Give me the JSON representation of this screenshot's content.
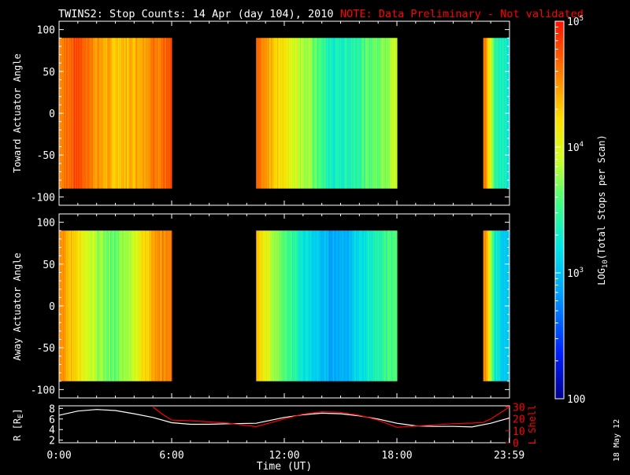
{
  "header": {
    "title": "TWINS2: Stop Counts: 14 Apr (day 104), 2010",
    "note": "NOTE: Data Preliminary - Not validated",
    "stamp": "18 May 12"
  },
  "colors": {
    "background": "#000000",
    "axes": "#ffffff",
    "note": "#ff0000",
    "r_line": "#ffffff",
    "lshell_line": "#ff0000"
  },
  "chart_data": [
    {
      "type": "heatmap",
      "name": "toward",
      "ylabel": "Toward Actuator Angle",
      "xlim": [
        0,
        24
      ],
      "ylim": [
        -110,
        110
      ],
      "yticks": [
        "100",
        "50",
        "0",
        "-50",
        "-100"
      ],
      "data_y_range": [
        -90,
        90
      ],
      "data_segments_hours": [
        [
          0,
          6
        ],
        [
          10.5,
          18
        ],
        [
          22.6,
          24
        ]
      ],
      "description_levels": [
        {
          "t": 0.2,
          "log": 4.6
        },
        {
          "t": 1.0,
          "log": 4.8
        },
        {
          "t": 2.0,
          "log": 4.5
        },
        {
          "t": 3.0,
          "log": 4.3
        },
        {
          "t": 4.0,
          "log": 4.4
        },
        {
          "t": 5.0,
          "log": 4.6
        },
        {
          "t": 5.9,
          "log": 4.7
        },
        {
          "t": 10.6,
          "log": 4.6
        },
        {
          "t": 11.5,
          "log": 4.3
        },
        {
          "t": 12.5,
          "log": 4.0
        },
        {
          "t": 13.5,
          "log": 3.7
        },
        {
          "t": 14.5,
          "log": 3.3
        },
        {
          "t": 15.5,
          "log": 3.4
        },
        {
          "t": 16.5,
          "log": 3.6
        },
        {
          "t": 17.9,
          "log": 3.9
        },
        {
          "t": 22.7,
          "log": 4.6
        },
        {
          "t": 23.2,
          "log": 3.5
        },
        {
          "t": 23.95,
          "log": 3.2
        }
      ]
    },
    {
      "type": "heatmap",
      "name": "away",
      "ylabel": "Away Actuator Angle",
      "xlim": [
        0,
        24
      ],
      "ylim": [
        -110,
        110
      ],
      "yticks": [
        "100",
        "50",
        "0",
        "-50",
        "-100"
      ],
      "data_y_range": [
        -90,
        90
      ],
      "data_segments_hours": [
        [
          0,
          6
        ],
        [
          10.5,
          18
        ],
        [
          22.6,
          24
        ]
      ],
      "description_levels": [
        {
          "t": 0.2,
          "log": 4.5
        },
        {
          "t": 1.0,
          "log": 4.2
        },
        {
          "t": 2.0,
          "log": 3.8
        },
        {
          "t": 3.0,
          "log": 3.6
        },
        {
          "t": 4.0,
          "log": 4.0
        },
        {
          "t": 5.0,
          "log": 4.4
        },
        {
          "t": 5.9,
          "log": 4.6
        },
        {
          "t": 10.6,
          "log": 4.3
        },
        {
          "t": 11.5,
          "log": 3.8
        },
        {
          "t": 12.5,
          "log": 3.4
        },
        {
          "t": 13.5,
          "log": 3.1
        },
        {
          "t": 14.5,
          "log": 2.9
        },
        {
          "t": 15.5,
          "log": 3.0
        },
        {
          "t": 16.5,
          "log": 3.3
        },
        {
          "t": 17.9,
          "log": 3.6
        },
        {
          "t": 22.7,
          "log": 4.5
        },
        {
          "t": 23.2,
          "log": 3.3
        },
        {
          "t": 23.95,
          "log": 3.0
        }
      ]
    },
    {
      "type": "line",
      "name": "orbit",
      "ylabel_left": "R [R",
      "ylabel_left_sub": "E",
      "ylabel_left_suffix": "]",
      "ylabel_right": "L Shell",
      "xlabel": "Time (UT)",
      "xticks": [
        "0:00",
        "6:00",
        "12:00",
        "18:00",
        "23:59"
      ],
      "ylim_left": [
        1.5,
        8.5
      ],
      "yticks_left": [
        "8",
        "6",
        "4",
        "2"
      ],
      "ylim_right": [
        0,
        31
      ],
      "yticks_right": [
        "30",
        "20",
        "10",
        "0"
      ],
      "series": [
        {
          "name": "R",
          "axis": "left",
          "x": [
            0,
            1,
            2,
            3,
            4,
            5,
            6,
            7,
            8,
            9,
            10.5,
            12,
            13,
            14,
            15,
            16,
            17,
            18,
            19,
            20,
            21,
            22,
            23,
            24
          ],
          "y": [
            6.7,
            7.5,
            7.8,
            7.6,
            7.0,
            6.3,
            5.3,
            5.0,
            5.0,
            5.1,
            5.2,
            6.3,
            6.8,
            7.1,
            7.0,
            6.6,
            6.0,
            5.2,
            4.7,
            4.6,
            4.6,
            4.5,
            5.2,
            6.2
          ]
        },
        {
          "name": "L Shell",
          "axis": "right",
          "x": [
            5.0,
            5.5,
            6.0,
            7,
            8,
            9,
            10.5,
            12,
            13,
            14,
            15,
            16,
            17,
            18,
            19,
            20,
            21,
            22,
            22.6,
            23,
            23.5,
            24
          ],
          "y": [
            30,
            24,
            19,
            18.5,
            17.5,
            16.5,
            13.5,
            20,
            24,
            26,
            25.5,
            23,
            19,
            13,
            14,
            15,
            16,
            16.5,
            17,
            20,
            25,
            30
          ]
        }
      ]
    },
    {
      "type": "heatmap",
      "name": "colorbar",
      "label_prefix": "LOG",
      "label_sub": "10",
      "label_suffix": "(Total Stops per Scan)",
      "range_log": [
        2,
        5
      ],
      "ticks": [
        {
          "log": 5,
          "base": "10",
          "exp": "5"
        },
        {
          "log": 4,
          "base": "10",
          "exp": "4"
        },
        {
          "log": 3,
          "base": "10",
          "exp": "3"
        },
        {
          "log": 2,
          "base": "100",
          "exp": ""
        }
      ]
    }
  ]
}
